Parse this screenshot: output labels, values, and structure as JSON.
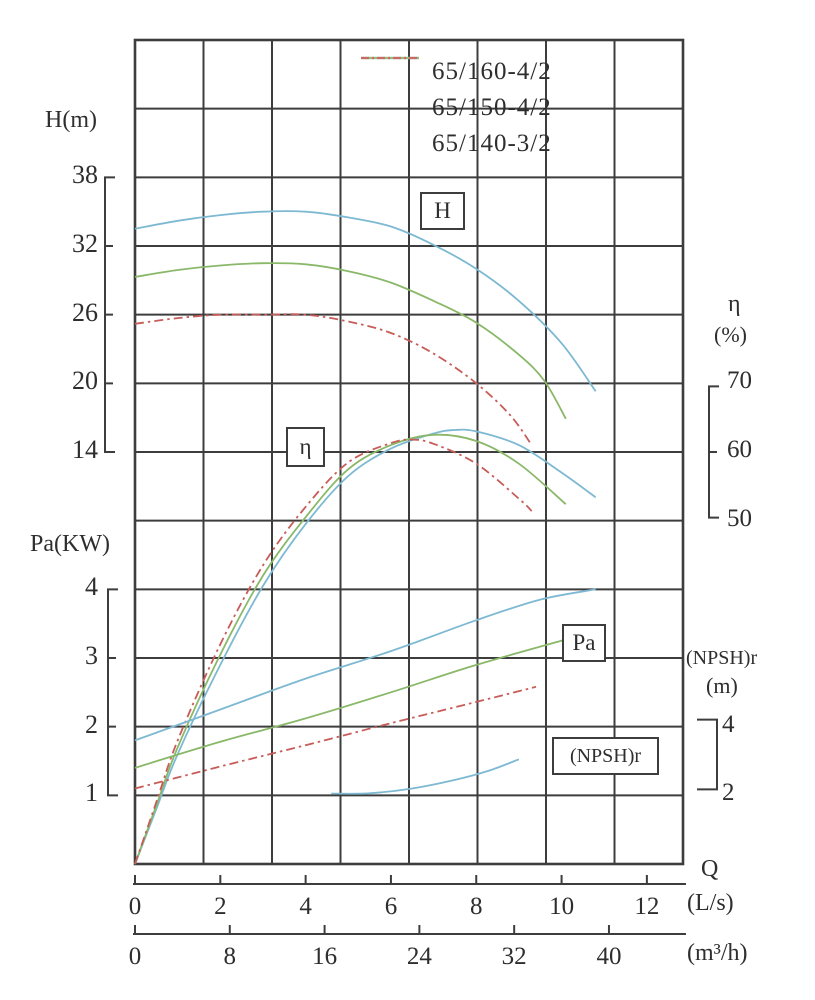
{
  "labels": {
    "h_axis": "H(m)",
    "pa_axis": "Pa(KW)",
    "eta_axis": "η",
    "eta_unit": "(%)",
    "npsh_axis": "(NPSH)r",
    "npsh_unit": "(m)",
    "q_axis": "Q",
    "q_unit_ls": "(L/s)",
    "q_unit_m3h": "(m³/h)"
  },
  "curve_tags": {
    "h": "H",
    "eta": "η",
    "pa": "Pa",
    "npsh": "(NPSH)r"
  },
  "legend": {
    "items": [
      {
        "label": "65/160-4/2",
        "color": "#8cc1d6",
        "dash": "solid"
      },
      {
        "label": "65/150-4/2",
        "color": "#95bd77",
        "dash": "solid"
      },
      {
        "label": "65/140-3/2",
        "color": "#c96a66",
        "dash": "dashdot"
      }
    ]
  },
  "colors": {
    "blue": "#7db9d2",
    "green": "#8ab869",
    "red": "#c75c58",
    "grid": "#3d3d3d",
    "text": "#2e2e2e"
  },
  "chart_data": {
    "type": "line",
    "title": "",
    "x_axis": {
      "label": "Q",
      "units": [
        "L/s",
        "m³/h"
      ],
      "ticks_ls": [
        0,
        2,
        4,
        6,
        8,
        10,
        12
      ],
      "ticks_m3h": [
        0,
        8,
        16,
        24,
        32,
        40
      ],
      "range_ls": [
        0,
        12.9
      ]
    },
    "y_axes": {
      "H": {
        "label": "H(m)",
        "ticks": [
          38,
          32,
          26,
          20,
          14
        ],
        "units_per_row": 6
      },
      "eta": {
        "label": "η(%)",
        "ticks": [
          70,
          60,
          50
        ],
        "units_per_row": 10
      },
      "Pa": {
        "label": "Pa(KW)",
        "ticks": [
          4,
          3,
          2,
          1
        ],
        "units_per_row": 1
      },
      "npsh": {
        "label": "(NPSH)r(m)",
        "ticks": [
          4,
          2
        ],
        "units_per_row": 2
      }
    },
    "grid": {
      "columns": 8,
      "rows": 12
    },
    "series": [
      {
        "name": "65/160-4/2",
        "quantity": "H",
        "axis": "H",
        "color": "#7db9d2",
        "dash": "solid",
        "points": [
          [
            0,
            33.5
          ],
          [
            1,
            34.2
          ],
          [
            2,
            34.7
          ],
          [
            3,
            35.0
          ],
          [
            4,
            35.0
          ],
          [
            5,
            34.5
          ],
          [
            6,
            33.7
          ],
          [
            7,
            32.1
          ],
          [
            8,
            30.0
          ],
          [
            9,
            27.2
          ],
          [
            10,
            23.5
          ],
          [
            10.8,
            19.3
          ]
        ]
      },
      {
        "name": "65/150-4/2",
        "quantity": "H",
        "axis": "H",
        "color": "#8ab869",
        "dash": "solid",
        "points": [
          [
            0,
            29.3
          ],
          [
            1,
            29.9
          ],
          [
            2,
            30.3
          ],
          [
            3,
            30.5
          ],
          [
            4,
            30.4
          ],
          [
            5,
            29.8
          ],
          [
            6,
            28.8
          ],
          [
            7,
            27.2
          ],
          [
            8,
            25.3
          ],
          [
            9,
            22.5
          ],
          [
            9.6,
            20.2
          ],
          [
            10.1,
            16.9
          ]
        ]
      },
      {
        "name": "65/140-3/2",
        "quantity": "H",
        "axis": "H",
        "color": "#c75c58",
        "dash": "dashdot",
        "points": [
          [
            0,
            25.2
          ],
          [
            1,
            25.7
          ],
          [
            2,
            26.0
          ],
          [
            3,
            26.0
          ],
          [
            4,
            26.0
          ],
          [
            5,
            25.4
          ],
          [
            6,
            24.4
          ],
          [
            7,
            22.6
          ],
          [
            8,
            20.0
          ],
          [
            8.8,
            17.2
          ],
          [
            9.3,
            14.6
          ]
        ]
      },
      {
        "name": "65/160-4/2",
        "quantity": "eta",
        "axis": "eta",
        "color": "#7db9d2",
        "dash": "solid",
        "points": [
          [
            0,
            0
          ],
          [
            0.5,
            8
          ],
          [
            1,
            16
          ],
          [
            2,
            29
          ],
          [
            3,
            40.5
          ],
          [
            4,
            49.5
          ],
          [
            5,
            56.5
          ],
          [
            6,
            60.5
          ],
          [
            7,
            62.7
          ],
          [
            7.5,
            63.2
          ],
          [
            8,
            63.0
          ],
          [
            9,
            61.0
          ],
          [
            10,
            57.0
          ],
          [
            10.8,
            53.4
          ]
        ]
      },
      {
        "name": "65/150-4/2",
        "quantity": "eta",
        "axis": "eta",
        "color": "#8ab869",
        "dash": "solid",
        "points": [
          [
            0,
            0
          ],
          [
            0.5,
            8.5
          ],
          [
            1,
            17
          ],
          [
            2,
            30.5
          ],
          [
            3,
            42
          ],
          [
            4,
            50.5
          ],
          [
            5,
            57.5
          ],
          [
            6,
            61.0
          ],
          [
            7,
            62.5
          ],
          [
            8,
            61.6
          ],
          [
            9,
            58.3
          ],
          [
            10.1,
            52.4
          ]
        ]
      },
      {
        "name": "65/140-3/2",
        "quantity": "eta",
        "axis": "eta",
        "color": "#c75c58",
        "dash": "dashdot",
        "points": [
          [
            0,
            0
          ],
          [
            0.5,
            9
          ],
          [
            1,
            18
          ],
          [
            2,
            32
          ],
          [
            3,
            43.5
          ],
          [
            4,
            52
          ],
          [
            5,
            58.5
          ],
          [
            6,
            61.3
          ],
          [
            6.5,
            61.8
          ],
          [
            7,
            61.2
          ],
          [
            8,
            58.3
          ],
          [
            9,
            53.2
          ],
          [
            9.3,
            51.4
          ]
        ]
      },
      {
        "name": "65/160-4/2",
        "quantity": "Pa",
        "axis": "Pa",
        "color": "#7db9d2",
        "dash": "solid",
        "points": [
          [
            0,
            1.8
          ],
          [
            2,
            2.25
          ],
          [
            4,
            2.7
          ],
          [
            6,
            3.1
          ],
          [
            8,
            3.55
          ],
          [
            9.5,
            3.85
          ],
          [
            10.8,
            4.0
          ]
        ]
      },
      {
        "name": "65/150-4/2",
        "quantity": "Pa",
        "axis": "Pa",
        "color": "#8ab869",
        "dash": "solid",
        "points": [
          [
            0,
            1.4
          ],
          [
            2,
            1.78
          ],
          [
            4,
            2.12
          ],
          [
            6,
            2.5
          ],
          [
            8,
            2.9
          ],
          [
            10.1,
            3.27
          ]
        ]
      },
      {
        "name": "65/140-3/2",
        "quantity": "Pa",
        "axis": "Pa",
        "color": "#c75c58",
        "dash": "dashdot",
        "points": [
          [
            0,
            1.1
          ],
          [
            2,
            1.42
          ],
          [
            4,
            1.73
          ],
          [
            6,
            2.05
          ],
          [
            8,
            2.36
          ],
          [
            9.4,
            2.58
          ]
        ]
      },
      {
        "name": "65/160-4/2",
        "quantity": "npsh",
        "axis": "npsh",
        "color": "#7db9d2",
        "dash": "solid",
        "points": [
          [
            4.6,
            2.05
          ],
          [
            5.5,
            2.06
          ],
          [
            6.5,
            2.2
          ],
          [
            7.5,
            2.45
          ],
          [
            8.3,
            2.72
          ],
          [
            9.0,
            3.05
          ]
        ]
      }
    ]
  }
}
